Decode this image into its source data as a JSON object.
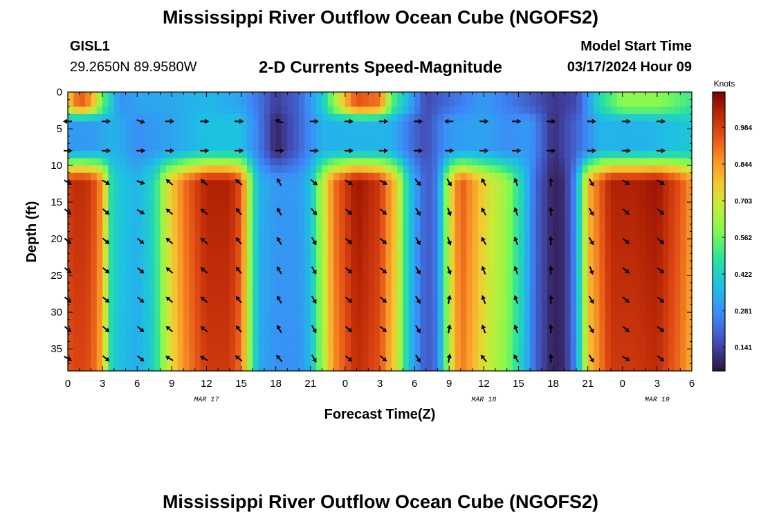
{
  "header": {
    "title": "Mississippi River Outflow Ocean Cube (NGOFS2)",
    "station_id": "GISL1",
    "station_coords": "29.2650N  89.9580W",
    "plot_title": "2-D Currents Speed-Magnitude",
    "model_start_label": "Model Start Time",
    "model_start_value": "03/17/2024 Hour 09"
  },
  "footer": {
    "title_repeat": "Mississippi River Outflow Ocean Cube (NGOFS2)"
  },
  "chart_data": {
    "type": "heatmap",
    "xlabel": "Forecast Time(Z)",
    "ylabel": "Depth (ft)",
    "colorbar_label": "Knots",
    "colorbar_ticks": [
      "0.984",
      "0.844",
      "0.703",
      "0.562",
      "0.422",
      "0.281",
      "0.141"
    ],
    "colorbar_range": [
      0.05,
      1.12
    ],
    "x_range_hours": [
      0,
      54
    ],
    "x_ticks": [
      "0",
      "3",
      "6",
      "9",
      "12",
      "15",
      "18",
      "21",
      "0",
      "3",
      "6",
      "9",
      "12",
      "15",
      "18",
      "21",
      "0",
      "3",
      "6"
    ],
    "x_date_labels": [
      {
        "text": "MAR 17",
        "hour": 12
      },
      {
        "text": "MAR 18",
        "hour": 36
      },
      {
        "text": "MAR 19",
        "hour": 51
      }
    ],
    "y_range_ft": [
      0,
      38
    ],
    "y_ticks": [
      "0",
      "5",
      "10",
      "15",
      "20",
      "25",
      "30",
      "35"
    ],
    "y_reversed": true,
    "surface_speed_knots": [
      [
        0,
        0.75
      ],
      [
        1,
        0.95
      ],
      [
        2,
        0.85
      ],
      [
        3,
        0.55
      ],
      [
        4.5,
        0.28
      ],
      [
        6,
        0.32
      ],
      [
        9,
        0.33
      ],
      [
        12,
        0.36
      ],
      [
        15,
        0.32
      ],
      [
        17,
        0.2
      ],
      [
        18,
        0.13
      ],
      [
        20,
        0.2
      ],
      [
        22,
        0.4
      ],
      [
        24,
        0.8
      ],
      [
        25,
        0.95
      ],
      [
        27,
        0.9
      ],
      [
        28,
        0.55
      ],
      [
        30,
        0.28
      ],
      [
        31,
        0.15
      ],
      [
        33,
        0.22
      ],
      [
        36,
        0.3
      ],
      [
        39,
        0.22
      ],
      [
        42,
        0.12
      ],
      [
        44,
        0.15
      ],
      [
        46,
        0.45
      ],
      [
        48,
        0.6
      ],
      [
        51,
        0.6
      ],
      [
        54,
        0.5
      ]
    ],
    "midlayer_speed_knots": [
      [
        0,
        0.3
      ],
      [
        2,
        0.3
      ],
      [
        4,
        0.35
      ],
      [
        6,
        0.28
      ],
      [
        9,
        0.32
      ],
      [
        12,
        0.38
      ],
      [
        15,
        0.38
      ],
      [
        17,
        0.2
      ],
      [
        18,
        0.08
      ],
      [
        20,
        0.2
      ],
      [
        22,
        0.35
      ],
      [
        25,
        0.35
      ],
      [
        28,
        0.35
      ],
      [
        30,
        0.2
      ],
      [
        31,
        0.16
      ],
      [
        33,
        0.3
      ],
      [
        36,
        0.32
      ],
      [
        38,
        0.28
      ],
      [
        40,
        0.3
      ],
      [
        42,
        0.1
      ],
      [
        44,
        0.2
      ],
      [
        46,
        0.35
      ],
      [
        50,
        0.35
      ],
      [
        54,
        0.4
      ]
    ],
    "deep_speed_knots": [
      [
        0,
        1.0
      ],
      [
        1,
        1.03
      ],
      [
        2,
        1.0
      ],
      [
        3,
        0.85
      ],
      [
        3.8,
        0.45
      ],
      [
        4.5,
        0.4
      ],
      [
        6,
        0.35
      ],
      [
        7.5,
        0.45
      ],
      [
        8.5,
        0.7
      ],
      [
        10,
        0.9
      ],
      [
        12,
        1.05
      ],
      [
        14,
        1.05
      ],
      [
        15,
        0.95
      ],
      [
        15.8,
        0.6
      ],
      [
        16.5,
        0.35
      ],
      [
        18,
        0.3
      ],
      [
        20,
        0.3
      ],
      [
        21,
        0.38
      ],
      [
        21.8,
        0.6
      ],
      [
        23,
        0.9
      ],
      [
        25,
        1.08
      ],
      [
        27,
        1.0
      ],
      [
        28.5,
        0.75
      ],
      [
        29.5,
        0.4
      ],
      [
        31,
        0.18
      ],
      [
        32,
        0.25
      ],
      [
        33,
        0.7
      ],
      [
        34,
        0.95
      ],
      [
        36,
        0.75
      ],
      [
        38,
        0.62
      ],
      [
        39.5,
        0.4
      ],
      [
        40.5,
        0.2
      ],
      [
        42,
        0.08
      ],
      [
        43,
        0.1
      ],
      [
        44,
        0.3
      ],
      [
        45,
        0.8
      ],
      [
        47,
        1.05
      ],
      [
        49,
        1.05
      ],
      [
        51,
        1.08
      ],
      [
        53,
        0.95
      ],
      [
        54,
        0.85
      ]
    ],
    "arrow_depths_ft": [
      4,
      8,
      12.3,
      16.3,
      20.3,
      24.3,
      28.3,
      32.3,
      36.3
    ],
    "arrow_hours": [
      0,
      3.3,
      6.3,
      8.8,
      11.8,
      14.8,
      18.3,
      21.3,
      24.3,
      27.3,
      30.3,
      33,
      36,
      38.8,
      41.8,
      45.3,
      48.3,
      51.3
    ],
    "arrow_angles_deg": [
      [
        180,
        0,
        20,
        0,
        0,
        0,
        -160,
        0,
        0,
        0,
        0,
        180,
        0,
        0,
        0,
        0,
        0,
        0
      ],
      [
        0,
        0,
        0,
        0,
        0,
        0,
        0,
        0,
        0,
        0,
        0,
        0,
        0,
        0,
        0,
        0,
        0,
        0
      ],
      [
        30,
        30,
        20,
        -140,
        -140,
        -140,
        -120,
        40,
        30,
        30,
        50,
        60,
        -120,
        -110,
        -90,
        60,
        30,
        30
      ],
      [
        40,
        40,
        30,
        -140,
        -140,
        -130,
        -120,
        50,
        40,
        40,
        60,
        70,
        -120,
        -110,
        -90,
        60,
        40,
        40
      ],
      [
        40,
        40,
        40,
        -140,
        -140,
        -130,
        -120,
        60,
        40,
        40,
        60,
        70,
        -120,
        -110,
        -90,
        60,
        40,
        40
      ],
      [
        40,
        40,
        40,
        -140,
        -140,
        -130,
        -120,
        60,
        40,
        40,
        60,
        70,
        -110,
        -110,
        -90,
        70,
        40,
        40
      ],
      [
        40,
        40,
        40,
        -140,
        -140,
        -130,
        -120,
        60,
        40,
        40,
        60,
        -80,
        -110,
        -110,
        -90,
        60,
        40,
        40
      ],
      [
        40,
        40,
        40,
        -140,
        -140,
        -130,
        -120,
        60,
        40,
        40,
        60,
        -80,
        -110,
        -110,
        -90,
        60,
        40,
        40
      ],
      [
        30,
        40,
        40,
        -150,
        -150,
        -140,
        -130,
        60,
        40,
        40,
        60,
        -80,
        -130,
        -120,
        -90,
        60,
        30,
        40
      ]
    ]
  }
}
